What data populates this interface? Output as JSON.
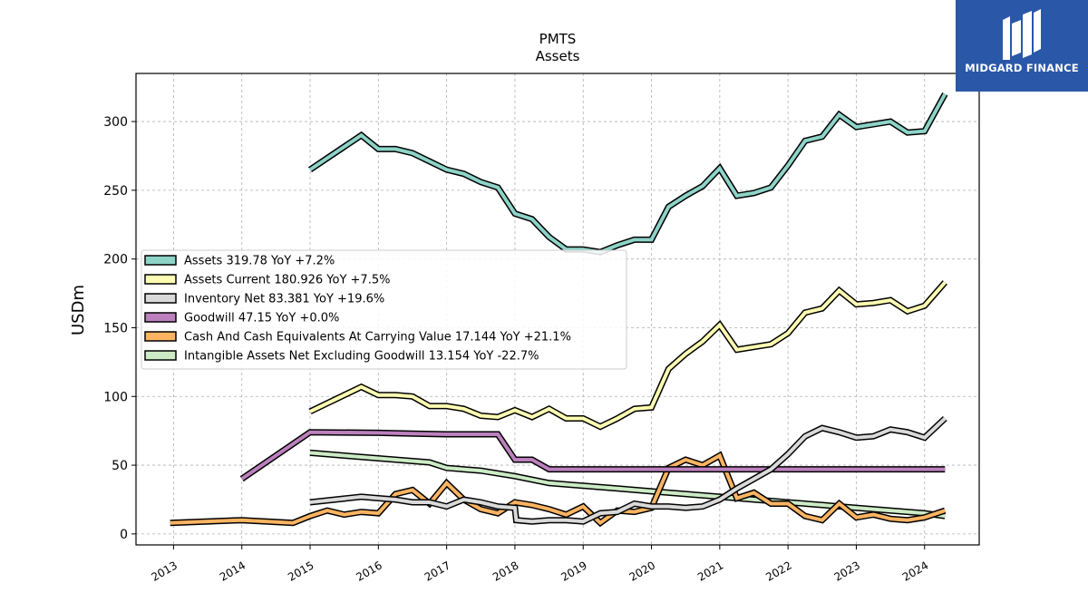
{
  "brand": {
    "name": "MIDGARD FINANCE",
    "bg_color": "#2a57a8"
  },
  "chart_data": {
    "type": "line",
    "title": "PMTS",
    "subtitle": "Assets",
    "xlabel": "",
    "ylabel": "USDm",
    "xlim": [
      2012.45,
      2024.8
    ],
    "ylim": [
      -8,
      335
    ],
    "x_ticks": [
      "2013",
      "2014",
      "2015",
      "2016",
      "2017",
      "2018",
      "2019",
      "2020",
      "2021",
      "2022",
      "2023",
      "2024"
    ],
    "y_ticks": [
      0,
      50,
      100,
      150,
      200,
      250,
      300
    ],
    "grid": true,
    "legend_position": "center-left",
    "series": [
      {
        "name": "Assets",
        "legend": "Assets  319.78 YoY +7.2%",
        "color": "#8dd3c7",
        "points": [
          [
            2015.0,
            265
          ],
          [
            2015.75,
            290
          ],
          [
            2016.0,
            280
          ],
          [
            2016.25,
            280
          ],
          [
            2016.5,
            277
          ],
          [
            2016.75,
            271
          ],
          [
            2017.0,
            265
          ],
          [
            2017.25,
            262
          ],
          [
            2017.5,
            256
          ],
          [
            2017.75,
            252
          ],
          [
            2018.0,
            233
          ],
          [
            2018.25,
            229
          ],
          [
            2018.5,
            216
          ],
          [
            2018.75,
            207
          ],
          [
            2019.0,
            207
          ],
          [
            2019.25,
            205
          ],
          [
            2019.5,
            210
          ],
          [
            2019.75,
            214
          ],
          [
            2020.0,
            214
          ],
          [
            2020.25,
            238
          ],
          [
            2020.5,
            246
          ],
          [
            2020.75,
            253
          ],
          [
            2021.0,
            266
          ],
          [
            2021.25,
            246
          ],
          [
            2021.5,
            248
          ],
          [
            2021.75,
            252
          ],
          [
            2022.0,
            268
          ],
          [
            2022.25,
            286
          ],
          [
            2022.5,
            289
          ],
          [
            2022.75,
            305
          ],
          [
            2023.0,
            296
          ],
          [
            2023.25,
            298
          ],
          [
            2023.5,
            300
          ],
          [
            2023.75,
            292
          ],
          [
            2024.0,
            293
          ],
          [
            2024.3,
            320
          ]
        ]
      },
      {
        "name": "Assets Current",
        "legend": "Assets Current  180.926 YoY +7.5%",
        "color": "#ffffb3",
        "points": [
          [
            2015.0,
            89
          ],
          [
            2015.75,
            107
          ],
          [
            2016.0,
            101
          ],
          [
            2016.25,
            101
          ],
          [
            2016.5,
            100
          ],
          [
            2016.75,
            93
          ],
          [
            2017.0,
            93
          ],
          [
            2017.25,
            91
          ],
          [
            2017.5,
            86
          ],
          [
            2017.75,
            85
          ],
          [
            2018.0,
            90
          ],
          [
            2018.25,
            85
          ],
          [
            2018.5,
            91
          ],
          [
            2018.75,
            84
          ],
          [
            2019.0,
            84
          ],
          [
            2019.25,
            78
          ],
          [
            2019.5,
            84
          ],
          [
            2019.75,
            91
          ],
          [
            2020.0,
            92
          ],
          [
            2020.25,
            120
          ],
          [
            2020.5,
            131
          ],
          [
            2020.75,
            140
          ],
          [
            2021.0,
            152
          ],
          [
            2021.25,
            134
          ],
          [
            2021.5,
            136
          ],
          [
            2021.75,
            138
          ],
          [
            2022.0,
            146
          ],
          [
            2022.25,
            161
          ],
          [
            2022.5,
            164
          ],
          [
            2022.75,
            177
          ],
          [
            2023.0,
            167
          ],
          [
            2023.25,
            168
          ],
          [
            2023.5,
            170
          ],
          [
            2023.75,
            162
          ],
          [
            2024.0,
            166
          ],
          [
            2024.3,
            183
          ]
        ]
      },
      {
        "name": "Inventory Net",
        "legend": "Inventory Net  83.381 YoY +19.6%",
        "color": "#d9d9d9",
        "points": [
          [
            2015.0,
            23
          ],
          [
            2015.75,
            27
          ],
          [
            2016.0,
            26
          ],
          [
            2016.25,
            25
          ],
          [
            2016.5,
            23
          ],
          [
            2016.75,
            23
          ],
          [
            2017.0,
            20
          ],
          [
            2017.25,
            25
          ],
          [
            2017.5,
            23
          ],
          [
            2017.75,
            20
          ],
          [
            2018.0,
            19
          ],
          [
            2018.02,
            10
          ],
          [
            2018.25,
            9
          ],
          [
            2018.5,
            10
          ],
          [
            2018.75,
            10
          ],
          [
            2019.0,
            9
          ],
          [
            2019.25,
            15
          ],
          [
            2019.5,
            16
          ],
          [
            2019.75,
            22
          ],
          [
            2020.0,
            20
          ],
          [
            2020.25,
            20
          ],
          [
            2020.5,
            19
          ],
          [
            2020.75,
            20
          ],
          [
            2021.0,
            25
          ],
          [
            2021.25,
            33
          ],
          [
            2021.5,
            40
          ],
          [
            2021.75,
            47
          ],
          [
            2022.0,
            58
          ],
          [
            2022.25,
            71
          ],
          [
            2022.5,
            77
          ],
          [
            2022.75,
            74
          ],
          [
            2023.0,
            70
          ],
          [
            2023.25,
            71
          ],
          [
            2023.5,
            76
          ],
          [
            2023.75,
            74
          ],
          [
            2024.0,
            70
          ],
          [
            2024.3,
            84
          ]
        ]
      },
      {
        "name": "Goodwill",
        "legend": "Goodwill  47.15 YoY +0.0%",
        "color": "#bc80bd",
        "points": [
          [
            2014.0,
            40
          ],
          [
            2015.0,
            74
          ],
          [
            2016.0,
            73.5
          ],
          [
            2016.5,
            73
          ],
          [
            2017.0,
            72.5
          ],
          [
            2017.5,
            72.5
          ],
          [
            2017.75,
            72.5
          ],
          [
            2018.0,
            54
          ],
          [
            2018.25,
            54
          ],
          [
            2018.5,
            47
          ],
          [
            2019.0,
            47
          ],
          [
            2020.0,
            47
          ],
          [
            2021.0,
            47
          ],
          [
            2022.0,
            47
          ],
          [
            2023.0,
            47
          ],
          [
            2024.3,
            47
          ]
        ]
      },
      {
        "name": "Cash And Cash Equivalents At Carrying Value",
        "legend": "Cash And Cash Equivalents At Carrying Value  17.144 YoY +21.1%",
        "color": "#fdb462",
        "points": [
          [
            2012.95,
            8
          ],
          [
            2014.0,
            10
          ],
          [
            2014.75,
            8
          ],
          [
            2015.0,
            13
          ],
          [
            2015.25,
            17
          ],
          [
            2015.5,
            14
          ],
          [
            2015.75,
            16
          ],
          [
            2016.0,
            15
          ],
          [
            2016.25,
            29
          ],
          [
            2016.5,
            32
          ],
          [
            2016.75,
            22
          ],
          [
            2017.0,
            37
          ],
          [
            2017.25,
            25
          ],
          [
            2017.5,
            18
          ],
          [
            2017.75,
            15
          ],
          [
            2018.0,
            23
          ],
          [
            2018.25,
            21
          ],
          [
            2018.5,
            18
          ],
          [
            2018.75,
            14
          ],
          [
            2019.0,
            20
          ],
          [
            2019.25,
            8
          ],
          [
            2019.5,
            17
          ],
          [
            2019.75,
            16
          ],
          [
            2020.0,
            19
          ],
          [
            2020.25,
            48
          ],
          [
            2020.5,
            54
          ],
          [
            2020.75,
            50
          ],
          [
            2021.0,
            57
          ],
          [
            2021.25,
            26
          ],
          [
            2021.5,
            30
          ],
          [
            2021.75,
            22
          ],
          [
            2022.0,
            22
          ],
          [
            2022.25,
            13
          ],
          [
            2022.5,
            10
          ],
          [
            2022.75,
            22
          ],
          [
            2023.0,
            12
          ],
          [
            2023.25,
            14
          ],
          [
            2023.5,
            11
          ],
          [
            2023.75,
            10
          ],
          [
            2024.0,
            12
          ],
          [
            2024.3,
            17
          ]
        ]
      },
      {
        "name": "Intangible Assets Net Excluding Goodwill",
        "legend": "Intangible Assets Net Excluding Goodwill  13.154 YoY -22.7%",
        "color": "#ccebc5",
        "points": [
          [
            2015.0,
            59
          ],
          [
            2015.5,
            57
          ],
          [
            2016.0,
            55
          ],
          [
            2016.5,
            53
          ],
          [
            2016.75,
            52
          ],
          [
            2017.0,
            48
          ],
          [
            2017.5,
            46
          ],
          [
            2018.0,
            42
          ],
          [
            2018.5,
            37
          ],
          [
            2019.0,
            35
          ],
          [
            2019.5,
            33
          ],
          [
            2020.0,
            31
          ],
          [
            2020.5,
            29
          ],
          [
            2021.0,
            27
          ],
          [
            2021.5,
            25
          ],
          [
            2022.0,
            23
          ],
          [
            2022.5,
            21
          ],
          [
            2023.0,
            19
          ],
          [
            2023.5,
            17
          ],
          [
            2024.0,
            15
          ],
          [
            2024.3,
            13
          ]
        ]
      }
    ]
  }
}
